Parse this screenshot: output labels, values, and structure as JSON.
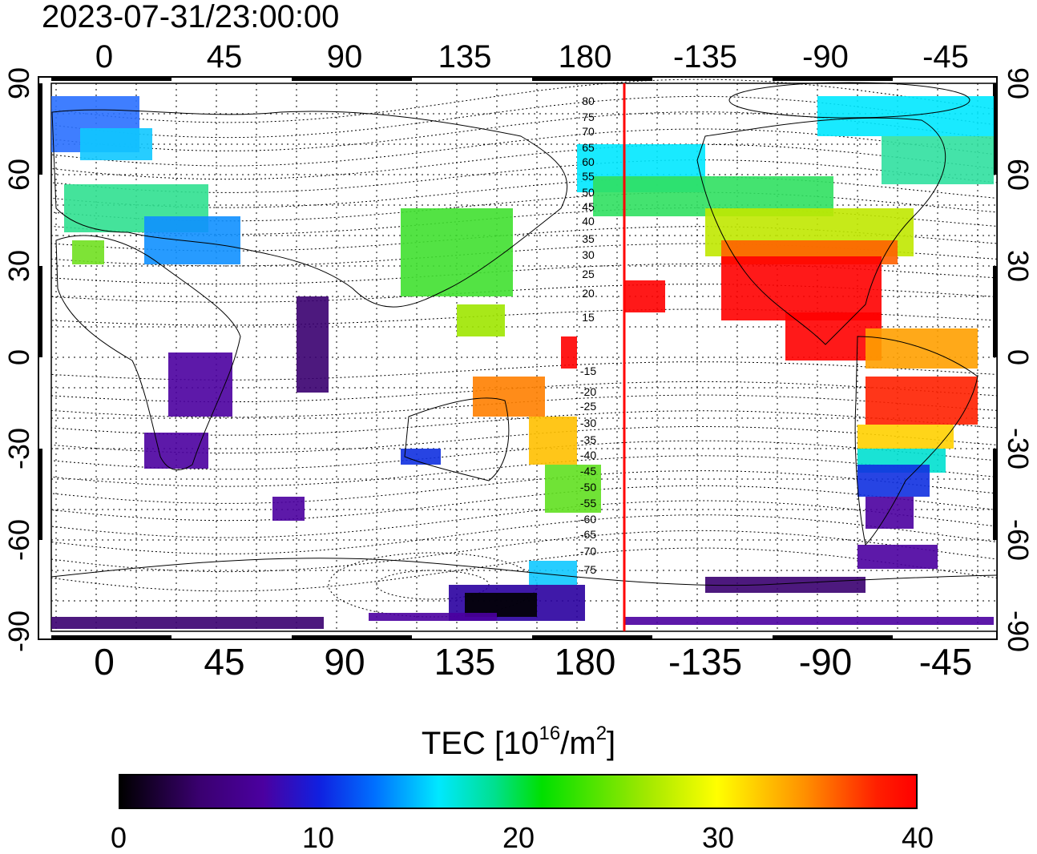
{
  "title": "2023-07-31/23:00:00",
  "map": {
    "top_longitude_labels": [
      "0",
      "45",
      "90",
      "135",
      "180",
      "-135",
      "-90",
      "-45"
    ],
    "bottom_longitude_labels": [
      "0",
      "45",
      "90",
      "135",
      "180",
      "-135",
      "-90",
      "-45"
    ],
    "left_latitude_labels": [
      "90",
      "60",
      "30",
      "0",
      "-30",
      "-60",
      "-90"
    ],
    "right_latitude_labels": [
      "90",
      "60",
      "30",
      "0",
      "-30",
      "-60",
      "-90"
    ],
    "contour_labels": [
      "80",
      "75",
      "70",
      "65",
      "60",
      "55",
      "50",
      "45",
      "40",
      "35",
      "30",
      "25",
      "20",
      "15",
      "-15",
      "-20",
      "-25",
      "-30",
      "-35",
      "-40",
      "-45",
      "-50",
      "-55",
      "-60",
      "-65",
      "-70",
      "-75"
    ],
    "meridian_line_color": "#ff0000"
  },
  "colorbar": {
    "label_main": "TEC  [10",
    "label_sup1": "16",
    "label_mid": "/m",
    "label_sup2": "2",
    "label_end": "]",
    "tick_labels": [
      "0",
      "10",
      "20",
      "30",
      "40"
    ],
    "range": [
      0,
      40
    ]
  }
}
